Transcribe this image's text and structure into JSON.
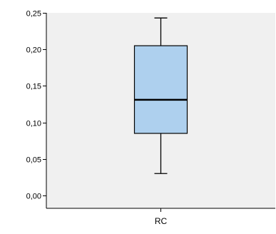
{
  "chart_data": {
    "type": "boxplot",
    "title": "",
    "xlabel": "",
    "ylabel": "",
    "categories": [
      "RC"
    ],
    "boxes": [
      {
        "category": "RC",
        "min": 0.03,
        "q1": 0.085,
        "median": 0.131,
        "q3": 0.205,
        "max": 0.243
      }
    ],
    "ylim": [
      0.0,
      0.25
    ],
    "yticks": [
      0.0,
      0.05,
      0.1,
      0.15,
      0.2,
      0.25
    ],
    "ytick_labels": [
      "0,00",
      "0,05",
      "0,10",
      "0,15",
      "0,20",
      "0,25"
    ],
    "grid": false,
    "legend": "none",
    "colors": {
      "plot_background": "#f0f0f0",
      "box_fill": "#aed0ee",
      "axis": "#000000",
      "median": "#000000"
    }
  }
}
